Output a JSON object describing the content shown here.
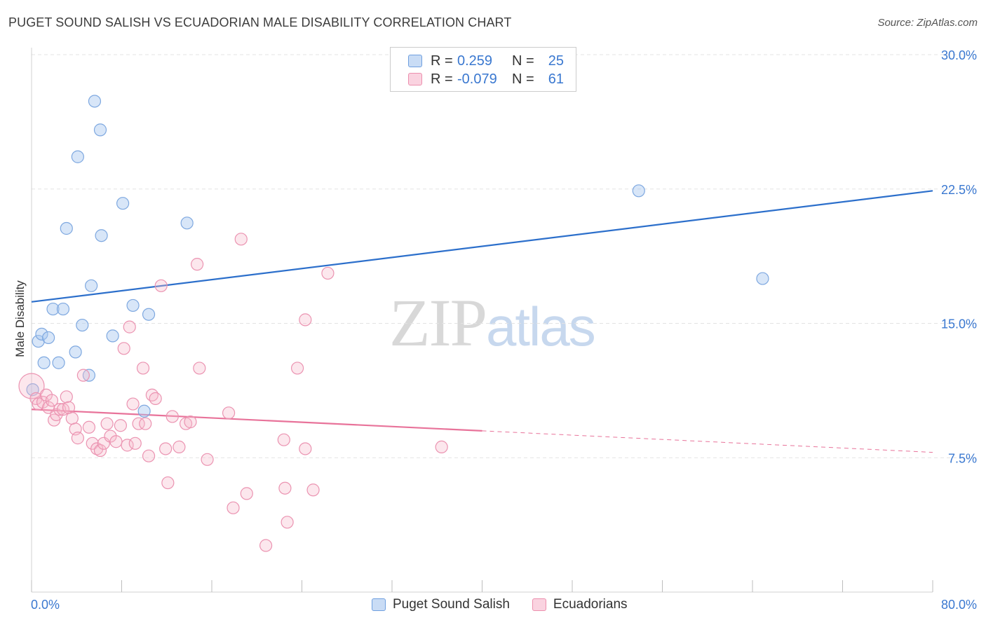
{
  "header": {
    "title": "PUGET SOUND SALISH VS ECUADORIAN MALE DISABILITY CORRELATION CHART",
    "source": "Source: ZipAtlas.com"
  },
  "legend": {
    "rows": [
      {
        "r_label": "R =",
        "r_value": "0.259",
        "n_label": "N =",
        "n_value": "25",
        "color": "#a9c8ef"
      },
      {
        "r_label": "R =",
        "r_value": "-0.079",
        "n_label": "N =",
        "n_value": "61",
        "color": "#f5b9cc"
      }
    ]
  },
  "bottom_legend": {
    "items": [
      {
        "label": "Puget Sound Salish",
        "color": "#a9c8ef"
      },
      {
        "label": "Ecuadorians",
        "color": "#f5b9cc"
      }
    ]
  },
  "watermark": {
    "zip": "ZIP",
    "atlas": "atlas"
  },
  "chart_data": {
    "type": "scatter",
    "title": "PUGET SOUND SALISH VS ECUADORIAN MALE DISABILITY CORRELATION CHART",
    "xlabel": "",
    "ylabel": "Male Disability",
    "xlim": [
      0,
      80
    ],
    "ylim": [
      0,
      30
    ],
    "x_tick_labels": [
      "0.0%",
      "80.0%"
    ],
    "y_tick_labels": [
      "7.5%",
      "15.0%",
      "22.5%",
      "30.0%"
    ],
    "y_ticks": [
      7.5,
      15.0,
      22.5,
      30.0
    ],
    "grid": "horizontal dashed",
    "legend_position": "top-center",
    "colors": {
      "blue_point": "#a9c8ef",
      "blue_line": "#2c6fcb",
      "pink_point": "#f5b9cc",
      "pink_line": "#e8739a",
      "tick_label": "#3a78d0"
    },
    "series": [
      {
        "name": "Puget Sound Salish",
        "color": "#a9c8ef",
        "points": [
          [
            0.1,
            11.3
          ],
          [
            0.6,
            14.0
          ],
          [
            0.9,
            14.4
          ],
          [
            1.1,
            12.8
          ],
          [
            1.5,
            14.2
          ],
          [
            1.9,
            15.8
          ],
          [
            2.4,
            12.8
          ],
          [
            2.8,
            15.8
          ],
          [
            3.1,
            20.3
          ],
          [
            3.9,
            13.4
          ],
          [
            4.1,
            24.3
          ],
          [
            4.5,
            14.9
          ],
          [
            5.1,
            12.1
          ],
          [
            5.3,
            17.1
          ],
          [
            5.6,
            27.4
          ],
          [
            6.1,
            25.8
          ],
          [
            6.2,
            19.9
          ],
          [
            7.2,
            14.3
          ],
          [
            8.1,
            21.7
          ],
          [
            9.0,
            16.0
          ],
          [
            10.4,
            15.5
          ],
          [
            13.8,
            20.6
          ],
          [
            10.0,
            10.1
          ],
          [
            53.9,
            22.4
          ],
          [
            64.9,
            17.5
          ]
        ],
        "trend": {
          "x": [
            0,
            80
          ],
          "y": [
            16.2,
            22.4
          ]
        }
      },
      {
        "name": "Ecuadorians",
        "color": "#f5b9cc",
        "points": [
          [
            0.0,
            11.5
          ],
          [
            0.4,
            10.8
          ],
          [
            0.6,
            10.5
          ],
          [
            1.0,
            10.6
          ],
          [
            1.3,
            11.0
          ],
          [
            1.5,
            10.3
          ],
          [
            1.8,
            10.7
          ],
          [
            2.0,
            9.6
          ],
          [
            2.2,
            9.9
          ],
          [
            2.5,
            10.2
          ],
          [
            2.8,
            10.2
          ],
          [
            3.1,
            10.9
          ],
          [
            3.3,
            10.3
          ],
          [
            3.6,
            9.7
          ],
          [
            3.9,
            9.1
          ],
          [
            4.1,
            8.6
          ],
          [
            4.6,
            12.1
          ],
          [
            5.1,
            9.2
          ],
          [
            5.4,
            8.3
          ],
          [
            5.8,
            8.0
          ],
          [
            6.1,
            7.9
          ],
          [
            6.4,
            8.3
          ],
          [
            6.7,
            9.4
          ],
          [
            7.0,
            8.7
          ],
          [
            7.5,
            8.4
          ],
          [
            7.9,
            9.3
          ],
          [
            8.2,
            13.6
          ],
          [
            8.5,
            8.2
          ],
          [
            8.7,
            14.8
          ],
          [
            9.0,
            10.5
          ],
          [
            9.5,
            9.4
          ],
          [
            9.9,
            12.5
          ],
          [
            10.1,
            9.4
          ],
          [
            10.4,
            7.6
          ],
          [
            10.7,
            11.0
          ],
          [
            11.0,
            10.8
          ],
          [
            11.5,
            17.1
          ],
          [
            11.9,
            8.0
          ],
          [
            12.1,
            6.1
          ],
          [
            12.5,
            9.8
          ],
          [
            13.1,
            8.1
          ],
          [
            13.7,
            9.4
          ],
          [
            14.1,
            9.5
          ],
          [
            14.7,
            18.3
          ],
          [
            14.9,
            12.5
          ],
          [
            15.6,
            7.4
          ],
          [
            17.5,
            10.0
          ],
          [
            17.9,
            4.7
          ],
          [
            18.6,
            19.7
          ],
          [
            19.1,
            5.5
          ],
          [
            20.8,
            2.6
          ],
          [
            22.4,
            8.5
          ],
          [
            22.5,
            5.8
          ],
          [
            22.7,
            3.9
          ],
          [
            23.6,
            12.5
          ],
          [
            24.3,
            8.0
          ],
          [
            24.3,
            15.2
          ],
          [
            25.0,
            5.7
          ],
          [
            26.3,
            17.8
          ],
          [
            36.4,
            8.1
          ],
          [
            9.2,
            8.3
          ]
        ],
        "trend": {
          "x": [
            0,
            40,
            80
          ],
          "y": [
            10.2,
            9.0,
            7.8
          ],
          "solid_until": 40
        }
      }
    ]
  }
}
